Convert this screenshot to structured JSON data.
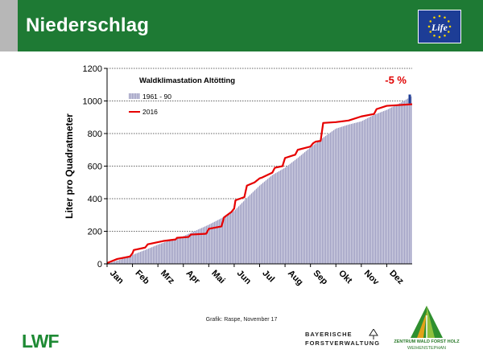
{
  "header": {
    "title": "Niederschlag",
    "life_logo_text": "Life",
    "colors": {
      "accent_green": "#1e7a34",
      "eu_blue": "#1d3d96",
      "star_yellow": "#f5d400"
    }
  },
  "chart_data": {
    "type": "area",
    "title": "Waldklimastation Altötting",
    "ylabel": "Liter pro Quadratmeter",
    "ylim": [
      0,
      1200
    ],
    "yticks": [
      0,
      200,
      400,
      600,
      800,
      1000,
      1200
    ],
    "grid": "dotted horizontal lines at 200-step ticks",
    "categories": [
      "Jan",
      "Feb",
      "Mrz",
      "Apr",
      "Mai",
      "Jun",
      "Jul",
      "Aug",
      "Sep",
      "Okt",
      "Nov",
      "Dez"
    ],
    "annotation": "-5 %",
    "annotation_color": "#e00000",
    "reference_line_value": 1000,
    "legend_position": "top-left",
    "series": [
      {
        "name": "1961 - 90",
        "style": "area",
        "color": "#b4b4d2",
        "x": [
          0,
          0.5,
          1,
          1.5,
          2,
          2.5,
          3,
          3.5,
          4,
          4.5,
          5,
          5.5,
          6,
          6.5,
          7,
          7.5,
          8,
          8.5,
          9,
          9.5,
          10,
          10.5,
          11,
          11.5,
          12
        ],
        "values": [
          0,
          25,
          55,
          85,
          118,
          145,
          170,
          205,
          240,
          280,
          325,
          405,
          480,
          545,
          590,
          650,
          715,
          775,
          830,
          855,
          875,
          915,
          945,
          985,
          1030
        ]
      },
      {
        "name": "2016",
        "style": "line",
        "color": "#e60000",
        "x": [
          0,
          0.4,
          0.9,
          1.0,
          1.05,
          1.5,
          1.6,
          2.2,
          2.7,
          2.75,
          3.2,
          3.3,
          3.9,
          4.0,
          4.5,
          4.6,
          4.9,
          5.0,
          5.05,
          5.4,
          5.5,
          5.8,
          6.0,
          6.1,
          6.5,
          6.6,
          6.9,
          7.0,
          7.4,
          7.5,
          8.0,
          8.1,
          8.2,
          8.4,
          8.5,
          9.0,
          9.5,
          10.0,
          10.5,
          10.6,
          11.0,
          11.5,
          12
        ],
        "values": [
          5,
          30,
          45,
          65,
          85,
          100,
          120,
          140,
          150,
          160,
          165,
          180,
          185,
          215,
          230,
          285,
          320,
          340,
          390,
          410,
          480,
          500,
          525,
          530,
          560,
          590,
          600,
          650,
          670,
          700,
          720,
          740,
          750,
          755,
          865,
          870,
          880,
          905,
          920,
          950,
          970,
          975,
          980
        ]
      }
    ]
  },
  "caption": "Grafik: Raspe, November 17",
  "logos": {
    "lwf": "LWF",
    "bayerische_line1": "BAYERISCHE",
    "bayerische_line2": "FORSTVERWALTUNG",
    "zentrum_line1": "ZENTRUM WALD FORST HOLZ",
    "zentrum_line2": "WEIHENSTEPHAN"
  }
}
